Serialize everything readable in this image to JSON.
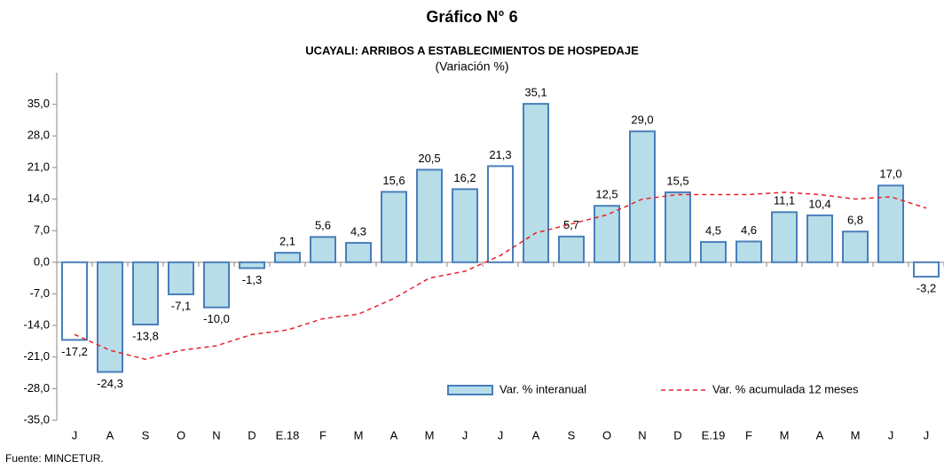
{
  "chart_data": {
    "type": "bar_line",
    "title": "Gráfico N° 6",
    "subtitle": "UCAYALI: ARRIBOS A ESTABLECIMIENTOS DE HOSPEDAJE",
    "unit_label": "(Variación %)",
    "source": "Fuente: MINCETUR.",
    "categories": [
      "J",
      "A",
      "S",
      "O",
      "N",
      "D",
      "E.18",
      "F",
      "M",
      "A",
      "M",
      "J",
      "J",
      "A",
      "S",
      "O",
      "N",
      "D",
      "E.19",
      "F",
      "M",
      "A",
      "M",
      "J",
      "J"
    ],
    "series": [
      {
        "name": "Var. % interanual",
        "kind": "bar",
        "color": "#b7dde8",
        "stroke": "#4a7ebb",
        "point_colors": [
          "#ffffff",
          "#b7dde8",
          "#b7dde8",
          "#b7dde8",
          "#b7dde8",
          "#b7dde8",
          "#b7dde8",
          "#b7dde8",
          "#b7dde8",
          "#b7dde8",
          "#b7dde8",
          "#b7dde8",
          "#ffffff",
          "#b7dde8",
          "#b7dde8",
          "#b7dde8",
          "#b7dde8",
          "#b7dde8",
          "#b7dde8",
          "#b7dde8",
          "#b7dde8",
          "#b7dde8",
          "#b7dde8",
          "#b7dde8",
          "#ffffff"
        ],
        "values": [
          -17.2,
          -24.3,
          -13.8,
          -7.1,
          -10.0,
          -1.3,
          2.1,
          5.6,
          4.3,
          15.6,
          20.5,
          16.2,
          21.3,
          35.1,
          5.7,
          12.5,
          29.0,
          15.5,
          4.5,
          4.6,
          11.1,
          10.4,
          6.8,
          17.0,
          -3.2
        ],
        "value_labels": [
          "-17,2",
          "-24,3",
          "-13,8",
          "-7,1",
          "-10,0",
          "-1,3",
          "2,1",
          "5,6",
          "4,3",
          "15,6",
          "20,5",
          "16,2",
          "21,3",
          "35,1",
          "5,7",
          "12,5",
          "29,0",
          "15,5",
          "4,5",
          "4,6",
          "11,1",
          "10,4",
          "6,8",
          "17,0",
          "-3,2"
        ]
      },
      {
        "name": "Var. % acumulada 12 meses",
        "kind": "line",
        "color": "#e8202a",
        "dashed": true,
        "values": [
          -16,
          -19.5,
          -21.5,
          -19.5,
          -18.5,
          -16,
          -15,
          -12.5,
          -11.5,
          -8,
          -3.5,
          -2,
          1.5,
          6.5,
          8.5,
          10.5,
          14,
          15,
          15,
          15,
          15.5,
          15,
          14,
          14.5,
          12
        ]
      }
    ],
    "ylim": [
      -35,
      42
    ],
    "yticks": [
      {
        "value": -35,
        "label": "-35,0"
      },
      {
        "value": -28,
        "label": "-28,0"
      },
      {
        "value": -21,
        "label": "-21,0"
      },
      {
        "value": -14,
        "label": "-14,0"
      },
      {
        "value": -7,
        "label": "-7,0"
      },
      {
        "value": 0,
        "label": "0,0"
      },
      {
        "value": 7,
        "label": "7,0"
      },
      {
        "value": 14,
        "label": "14,0"
      },
      {
        "value": 21,
        "label": "21,0"
      },
      {
        "value": 28,
        "label": "28,0"
      },
      {
        "value": 35,
        "label": "35,0"
      }
    ],
    "legend": "bottom-right"
  }
}
